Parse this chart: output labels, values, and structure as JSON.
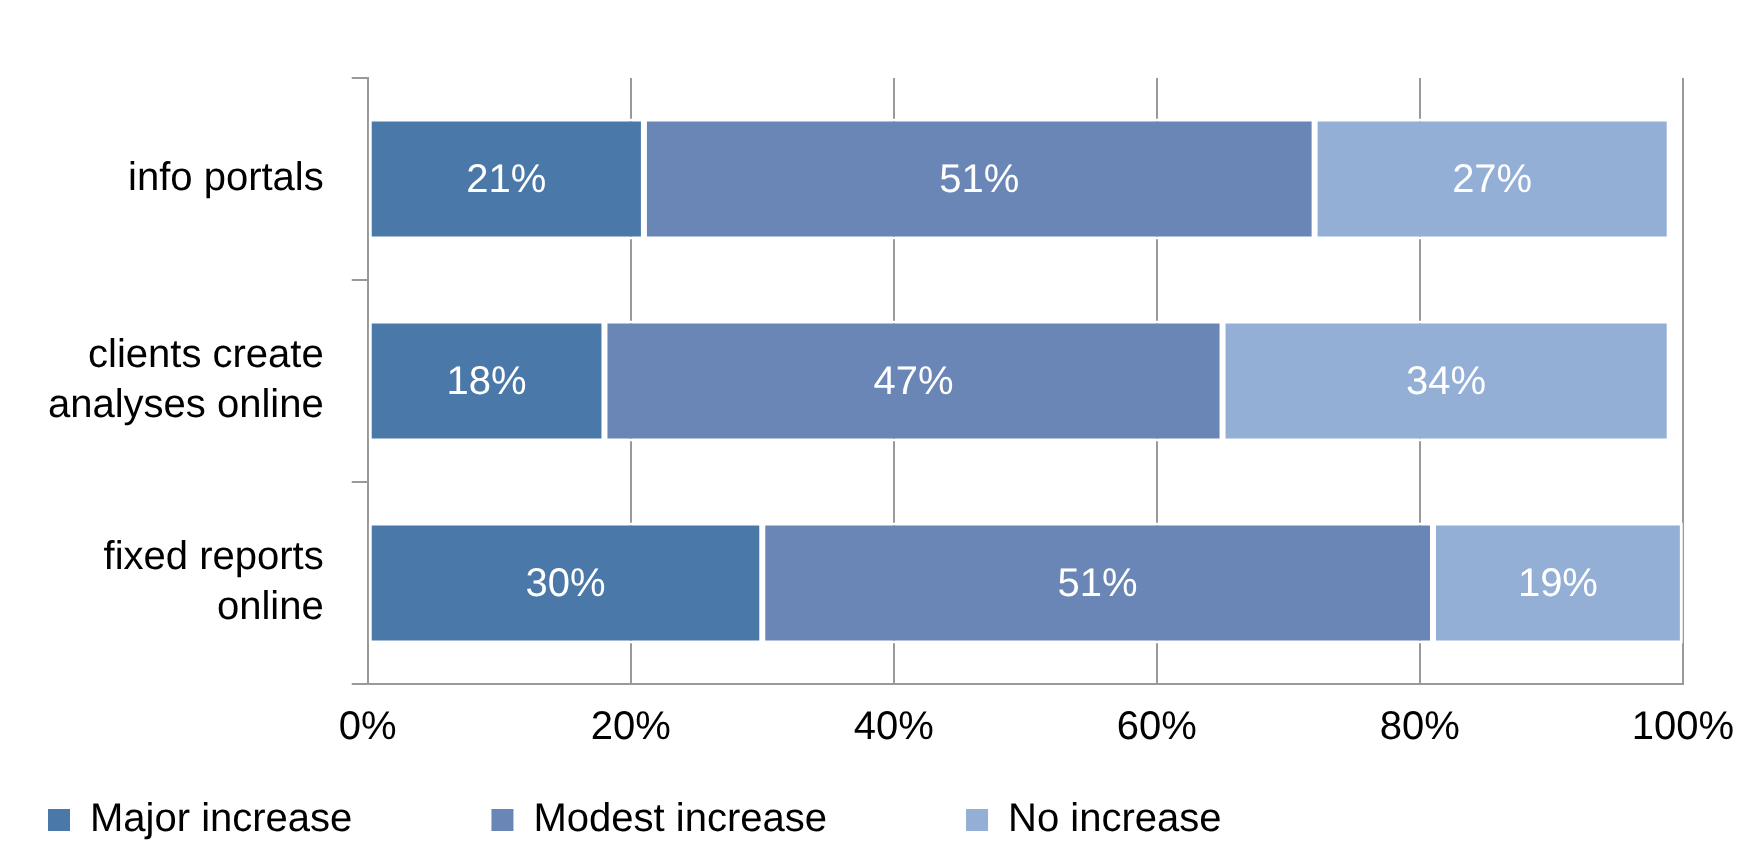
{
  "chart_data": {
    "type": "bar",
    "orientation": "horizontal",
    "stacked": true,
    "categories": [
      "info portals",
      "clients create analyses online",
      "fixed reports online"
    ],
    "series": [
      {
        "name": "Major increase",
        "color": "#4a78a8",
        "values": [
          21,
          18,
          30
        ],
        "value_labels": [
          "21%",
          "18%",
          "30%"
        ]
      },
      {
        "name": "Modest increase",
        "color": "#6a86b6",
        "values": [
          51,
          47,
          51
        ],
        "value_labels": [
          "51%",
          "47%",
          "51%"
        ]
      },
      {
        "name": "No increase",
        "color": "#93afd6",
        "values": [
          27,
          34,
          19
        ],
        "value_labels": [
          "27%",
          "34%",
          "19%"
        ]
      }
    ],
    "xlim": [
      0,
      100
    ],
    "xticks": [
      {
        "value": 0,
        "label": "0%"
      },
      {
        "value": 20,
        "label": "20%"
      },
      {
        "value": 40,
        "label": "40%"
      },
      {
        "value": 60,
        "label": "60%"
      },
      {
        "value": 80,
        "label": "80%"
      },
      {
        "value": 100,
        "label": "100%"
      }
    ],
    "grid": "x",
    "legend": "bottom"
  }
}
